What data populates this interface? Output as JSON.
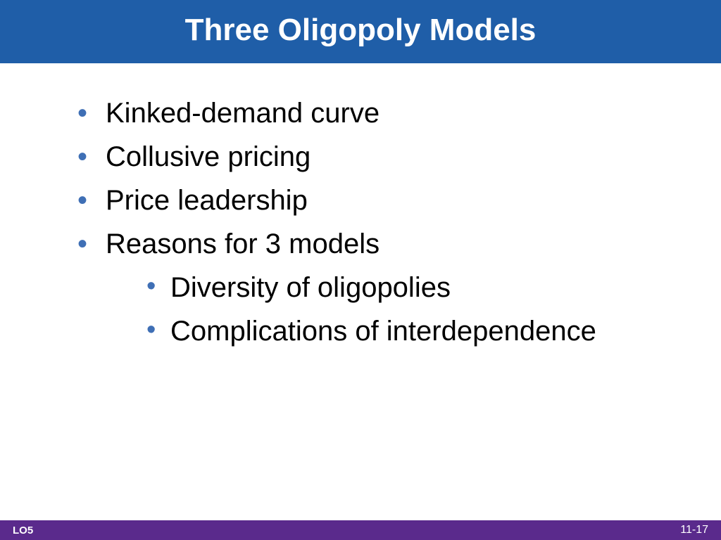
{
  "slide": {
    "title": "Three Oligopoly Models",
    "title_bg_color": "#1f5ea8",
    "title_text_color": "#ffffff",
    "title_fontsize": 44,
    "bullets": [
      {
        "text": "Kinked-demand curve"
      },
      {
        "text": "Collusive pricing"
      },
      {
        "text": "Price leadership"
      },
      {
        "text": "Reasons for 3 models",
        "sub": [
          {
            "text": "Diversity of oligopolies"
          },
          {
            "text": "Complications of interdependence"
          }
        ]
      }
    ],
    "bullet_color": "#3f6fb5",
    "body_fontsize": 40,
    "body_text_color": "#000000",
    "background_color": "#ffffff"
  },
  "footer": {
    "left": "LO5",
    "right": "11-17",
    "bg_color": "#5a2a8c",
    "text_color": "#ffffff"
  }
}
